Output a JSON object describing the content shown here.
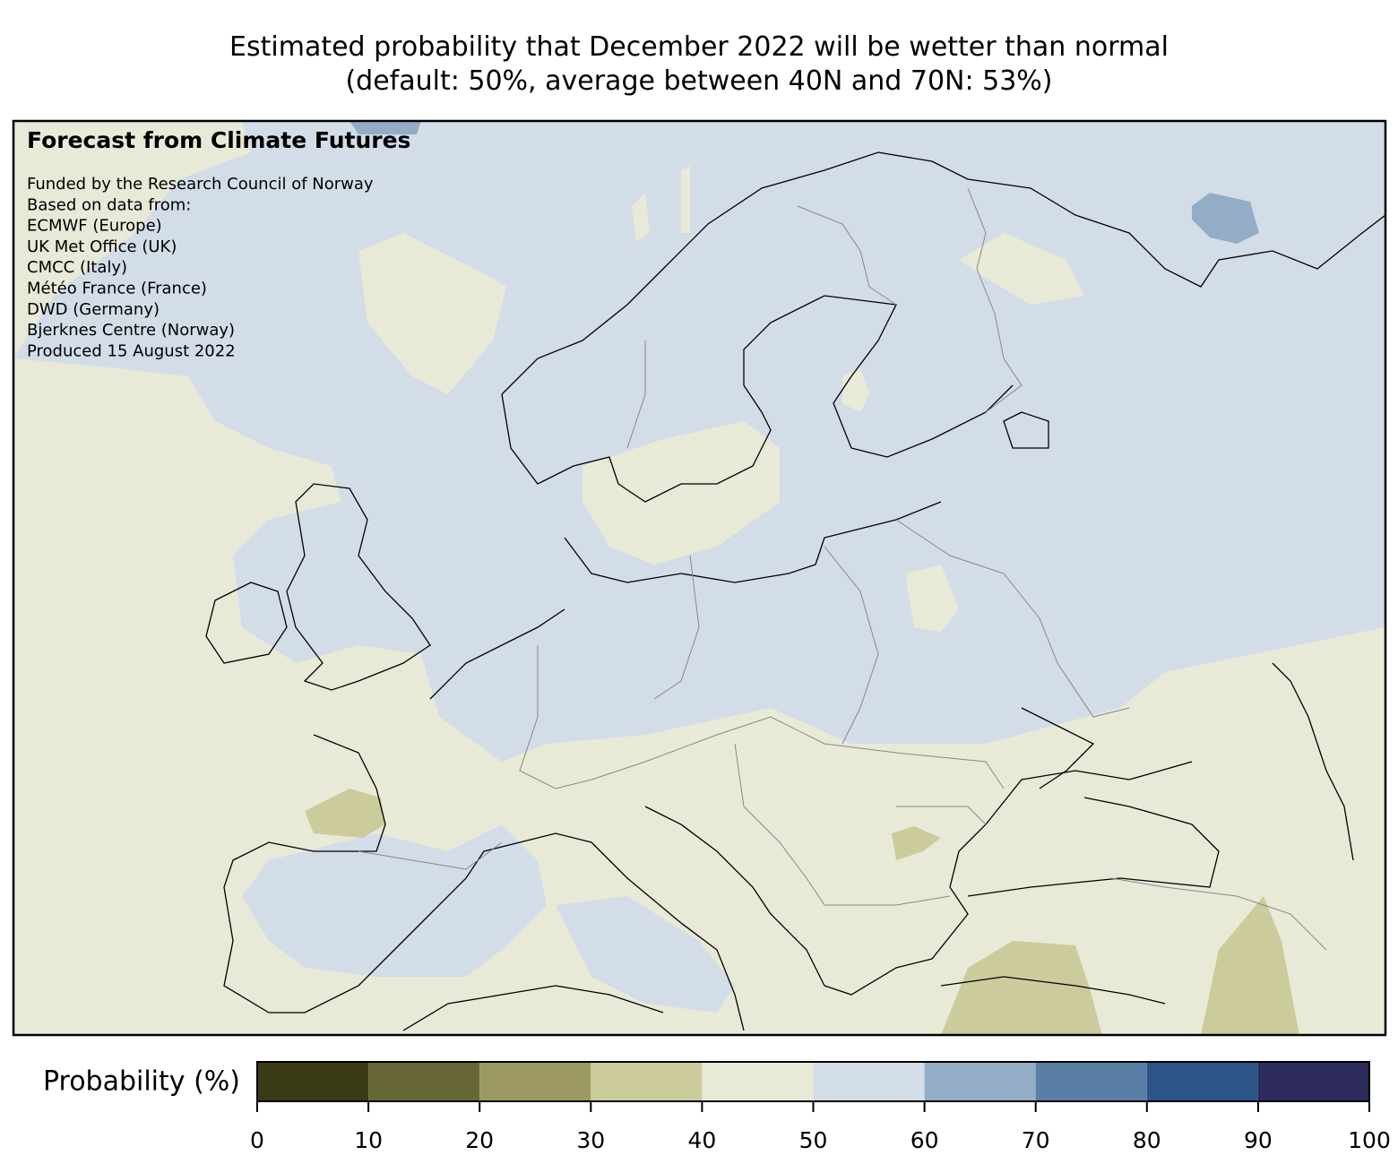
{
  "title": "Estimated probability that December 2022 will be wetter than normal",
  "subtitle": "(default: 50%, average between 40N and 70N: 53%)",
  "panel": {
    "heading": "Forecast from Climate Futures",
    "lines": [
      "Funded by the Research Council of Norway",
      "Based on data from:",
      "ECMWF (Europe)",
      "UK Met Office (UK)",
      "CMCC (Italy)",
      "Météo France (France)",
      "DWD (Germany)",
      "Bjerknes Centre (Norway)",
      "Produced 15 August 2022"
    ]
  },
  "colorbar": {
    "label": "Probability (%)",
    "ticks": [
      0,
      10,
      20,
      30,
      40,
      50,
      60,
      70,
      80,
      90,
      100
    ],
    "colors": [
      "#3a3a14",
      "#676637",
      "#9c9a62",
      "#cbcb9c",
      "#e9e9d8",
      "#d3dde8",
      "#94adc6",
      "#5a7fa6",
      "#2d5487",
      "#2c2b5c"
    ]
  }
}
